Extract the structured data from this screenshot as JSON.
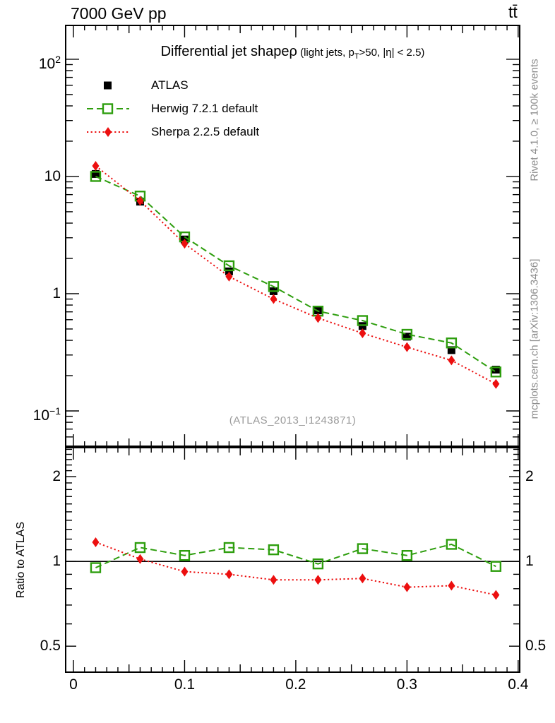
{
  "header": {
    "beam": "7000 GeV pp",
    "process": "tt̄"
  },
  "plot_title": {
    "main": "Differential jet shape",
    "rho": "ρ",
    "cut_pre": " (light jets, p",
    "cut_sub": "T",
    "cut_post": ">50, |η| < 2.5)"
  },
  "legend": [
    {
      "label": "ATLAS",
      "marker": "filled-square",
      "color": "#000000",
      "line": "none"
    },
    {
      "label": "Herwig 7.2.1 default",
      "marker": "open-square",
      "color": "#2e9e0e",
      "line": "dashed"
    },
    {
      "label": "Sherpa 2.2.5 default",
      "marker": "filled-diamond",
      "color": "#ec0f0f",
      "line": "dotted"
    }
  ],
  "watermark": "(ATLAS_2013_I1243871)",
  "side_notes": {
    "top": "Rivet 4.1.0, ≥ 100k events",
    "bottom": "mcplots.cern.ch [arXiv:1306.3436]"
  },
  "ratio_axis_label": "Ratio to ATLAS",
  "colors": {
    "atlas": "#000000",
    "herwig": "#2e9e0e",
    "sherpa": "#ec0f0f",
    "frame": "#000000",
    "watermark": "#9a9a9a",
    "side_note": "#8c8c8c"
  },
  "chart_data": [
    {
      "type": "line",
      "title": "Differential jet shape ρ (light jets, pT>50, |η| < 2.5)",
      "xlabel": "",
      "ylabel": "",
      "yscale": "log",
      "xlim": [
        -0.0076,
        0.402
      ],
      "ylim": [
        0.0493,
        197
      ],
      "x": [
        0.02,
        0.06,
        0.1,
        0.14,
        0.18,
        0.22,
        0.26,
        0.3,
        0.34,
        0.38
      ],
      "series": [
        {
          "name": "ATLAS",
          "color_key": "atlas",
          "marker": "filled-square",
          "line": "none",
          "values": [
            10.5,
            6.1,
            2.9,
            1.55,
            1.05,
            0.72,
            0.53,
            0.43,
            0.33,
            0.225
          ]
        },
        {
          "name": "Herwig 7.2.1 default",
          "color_key": "herwig",
          "marker": "open-square",
          "line": "dashed",
          "values": [
            10.0,
            6.8,
            3.05,
            1.73,
            1.15,
            0.71,
            0.59,
            0.45,
            0.38,
            0.215
          ]
        },
        {
          "name": "Sherpa 2.2.5 default",
          "color_key": "sherpa",
          "marker": "filled-diamond",
          "line": "dotted",
          "values": [
            12.3,
            6.2,
            2.67,
            1.4,
            0.9,
            0.62,
            0.46,
            0.35,
            0.27,
            0.17
          ]
        }
      ],
      "yticks": [
        {
          "v": 100,
          "base": "10",
          "exp": "2"
        },
        {
          "v": 10,
          "base": "10",
          "exp": ""
        },
        {
          "v": 1,
          "base": "1",
          "exp": ""
        },
        {
          "v": 0.1,
          "base": "10",
          "exp": "−1"
        }
      ],
      "legend_position": "top-left",
      "grid": false
    },
    {
      "type": "line",
      "title": "",
      "xlabel": "",
      "ylabel": "Ratio to ATLAS",
      "yscale": "log",
      "xlim": [
        -0.0076,
        0.402
      ],
      "ylim": [
        0.402,
        2.55
      ],
      "reference_line": 1,
      "x": [
        0.02,
        0.06,
        0.1,
        0.14,
        0.18,
        0.22,
        0.26,
        0.3,
        0.34,
        0.38
      ],
      "series": [
        {
          "name": "Herwig 7.2.1 default",
          "color_key": "herwig",
          "marker": "open-square",
          "line": "dashed",
          "values": [
            0.95,
            1.12,
            1.05,
            1.12,
            1.1,
            0.98,
            1.11,
            1.05,
            1.15,
            0.96
          ]
        },
        {
          "name": "Sherpa 2.2.5 default",
          "color_key": "sherpa",
          "marker": "filled-diamond",
          "line": "dotted",
          "values": [
            1.17,
            1.02,
            0.92,
            0.9,
            0.86,
            0.86,
            0.87,
            0.81,
            0.82,
            0.76
          ]
        }
      ],
      "yticks": [
        {
          "v": 2,
          "label": "2"
        },
        {
          "v": 1,
          "label": "1"
        },
        {
          "v": 0.5,
          "label": "0.5"
        }
      ],
      "xticks": {
        "v": [
          0,
          0.1,
          0.2,
          0.3,
          0.4
        ],
        "labels": [
          "0",
          "0.1",
          "0.2",
          "0.3",
          "0.4"
        ]
      },
      "grid": false
    }
  ]
}
